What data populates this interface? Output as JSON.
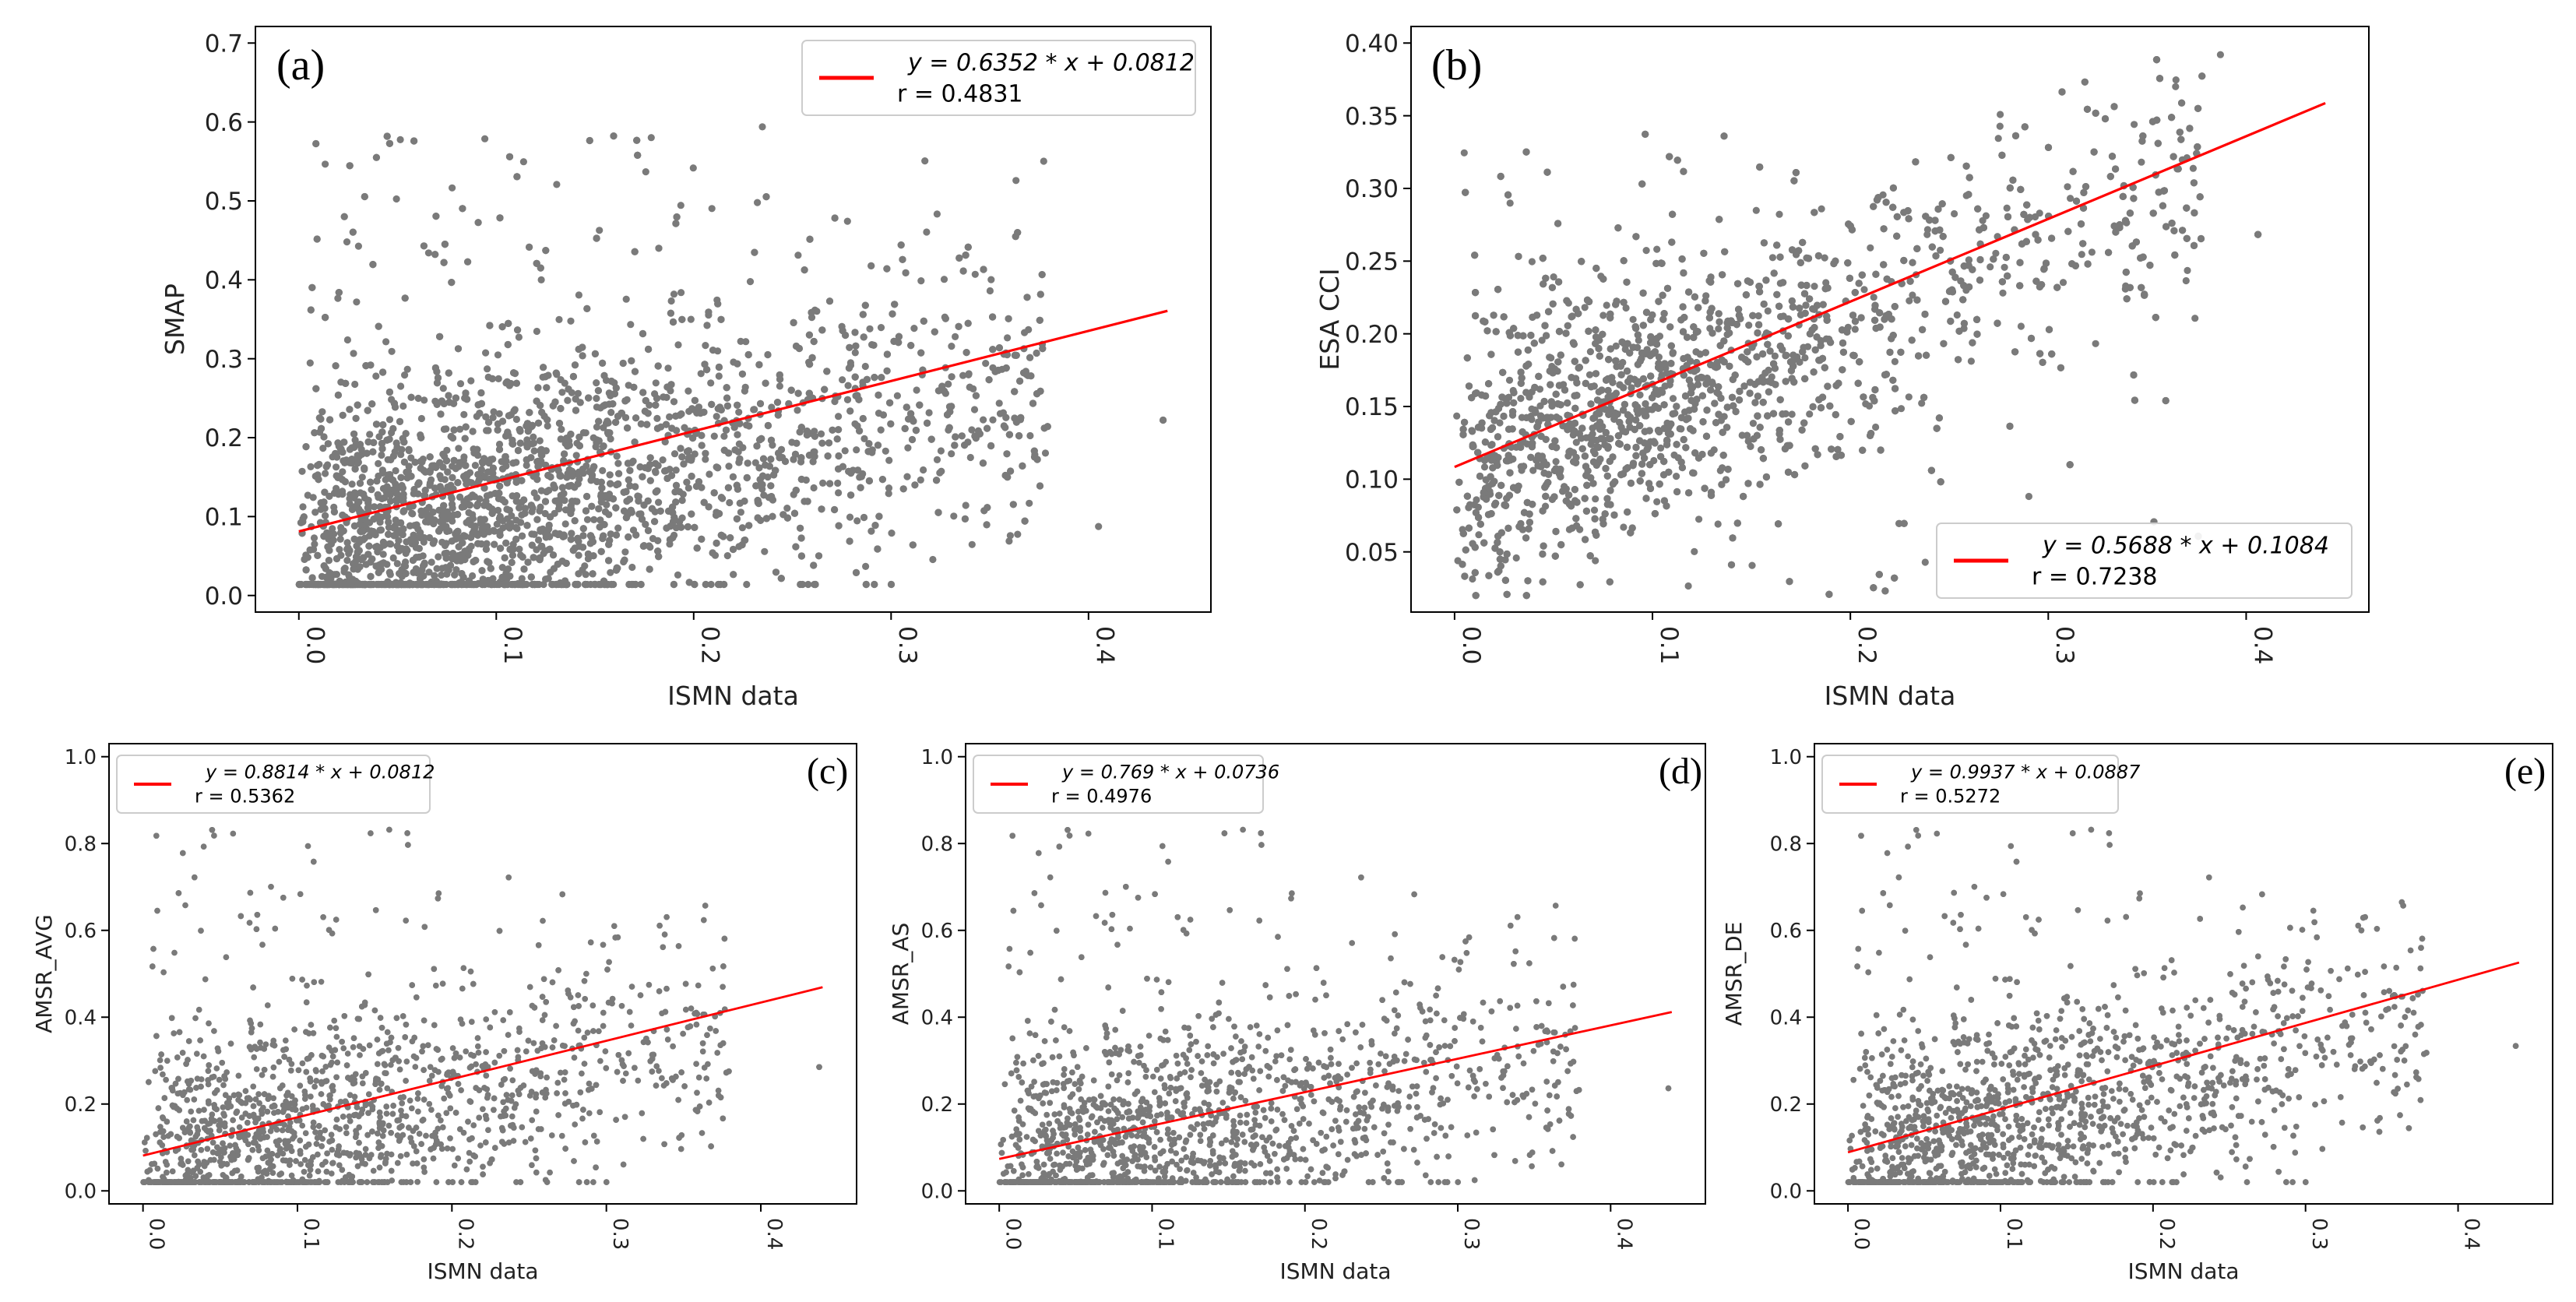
{
  "colors": {
    "scatter": "#7a7a7a",
    "fit": "#ff0000",
    "frame": "#000000"
  },
  "chart_data": [
    {
      "panel_label": "(a)",
      "type": "scatter",
      "xlabel": "ISMN data",
      "ylabel": "SMAP",
      "xlim": [
        0.0,
        0.44
      ],
      "ylim": [
        0.0,
        0.7
      ],
      "xticks": [
        "0.0",
        "0.1",
        "0.2",
        "0.3",
        "0.4"
      ],
      "yticks": [
        "0.0",
        "0.1",
        "0.2",
        "0.3",
        "0.4",
        "0.5",
        "0.6",
        "0.7"
      ],
      "fit": {
        "slope": 0.6352,
        "intercept": 0.0812,
        "x_range": [
          0.0,
          0.44
        ]
      },
      "legend": {
        "equation": "y = 0.6352 * x + 0.0812",
        "r": "r = 0.4831",
        "placement": "top-right"
      },
      "grid": false
    },
    {
      "panel_label": "(b)",
      "type": "scatter",
      "xlabel": "ISMN data",
      "ylabel": "ESA CCI",
      "xlim": [
        0.0,
        0.44
      ],
      "ylim": [
        0.02,
        0.4
      ],
      "xticks": [
        "0.0",
        "0.1",
        "0.2",
        "0.3",
        "0.4"
      ],
      "yticks": [
        "0.05",
        "0.10",
        "0.15",
        "0.20",
        "0.25",
        "0.30",
        "0.35",
        "0.40"
      ],
      "fit": {
        "slope": 0.5688,
        "intercept": 0.1084,
        "x_range": [
          0.0,
          0.44
        ]
      },
      "legend": {
        "equation": "y = 0.5688 * x + 0.1084",
        "r": "r = 0.7238",
        "placement": "bottom-right"
      },
      "grid": false
    },
    {
      "panel_label": "(c)",
      "type": "scatter",
      "xlabel": "ISMN data",
      "ylabel": "AMSR_AVG",
      "xlim": [
        0.0,
        0.44
      ],
      "ylim": [
        0.0,
        1.0
      ],
      "xticks": [
        "0.0",
        "0.1",
        "0.2",
        "0.3",
        "0.4"
      ],
      "yticks": [
        "0.0",
        "0.2",
        "0.4",
        "0.6",
        "0.8",
        "1.0"
      ],
      "fit": {
        "slope": 0.8814,
        "intercept": 0.0812,
        "x_range": [
          0.0,
          0.44
        ]
      },
      "legend": {
        "equation": "y = 0.8814 * x + 0.0812",
        "r": "r = 0.5362",
        "placement": "top-left"
      },
      "grid": false
    },
    {
      "panel_label": "(d)",
      "type": "scatter",
      "xlabel": "ISMN data",
      "ylabel": "AMSR_AS",
      "xlim": [
        0.0,
        0.44
      ],
      "ylim": [
        0.0,
        1.0
      ],
      "xticks": [
        "0.0",
        "0.1",
        "0.2",
        "0.3",
        "0.4"
      ],
      "yticks": [
        "0.0",
        "0.2",
        "0.4",
        "0.6",
        "0.8",
        "1.0"
      ],
      "fit": {
        "slope": 0.769,
        "intercept": 0.0736,
        "x_range": [
          0.0,
          0.44
        ]
      },
      "legend": {
        "equation": "y = 0.769 * x + 0.0736",
        "r": "r = 0.4976",
        "placement": "top-left"
      },
      "grid": false
    },
    {
      "panel_label": "(e)",
      "type": "scatter",
      "xlabel": "ISMN data",
      "ylabel": "AMSR_DE",
      "xlim": [
        0.0,
        0.44
      ],
      "ylim": [
        0.0,
        1.0
      ],
      "xticks": [
        "0.0",
        "0.1",
        "0.2",
        "0.3",
        "0.4"
      ],
      "yticks": [
        "0.0",
        "0.2",
        "0.4",
        "0.6",
        "0.8",
        "1.0"
      ],
      "fit": {
        "slope": 0.9937,
        "intercept": 0.0887,
        "x_range": [
          0.0,
          0.44
        ]
      },
      "legend": {
        "equation": "y = 0.9937 * x + 0.0887",
        "r": "r = 0.5272",
        "placement": "top-left"
      },
      "grid": false
    }
  ]
}
